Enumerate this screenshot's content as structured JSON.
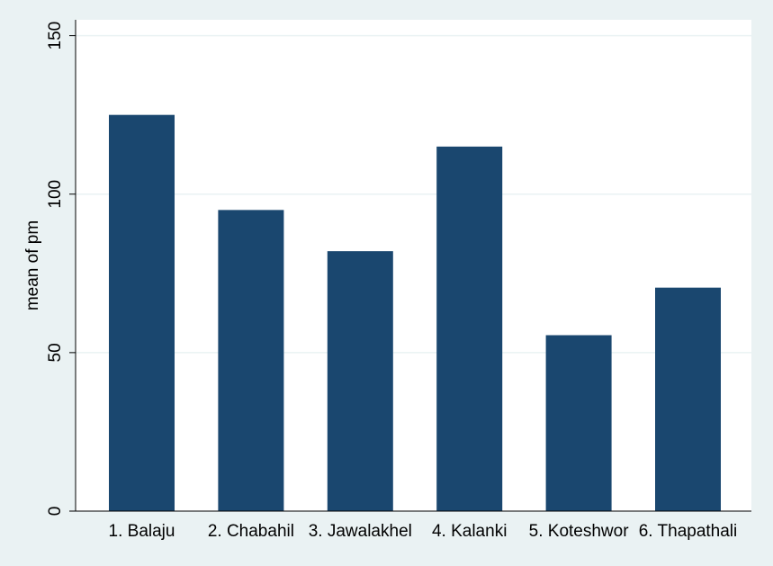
{
  "chart_data": {
    "type": "bar",
    "categories": [
      "1. Balaju",
      "2. Chabahil",
      "3. Jawalakhel",
      "4. Kalanki",
      "5. Koteshwor",
      "6. Thapathali"
    ],
    "values": [
      125,
      95,
      82,
      115,
      55.5,
      70.5
    ],
    "title": "",
    "xlabel": "",
    "ylabel": "mean of pm",
    "ylim": [
      0,
      155
    ],
    "yticks": [
      0,
      50,
      100,
      150
    ],
    "grid": true,
    "legend": "none"
  },
  "colors": {
    "bar": "#1a476f",
    "plot_background": "#ffffff",
    "outer_background": "#eaf2f3",
    "grid": "#eaf2f3",
    "axis": "#000000"
  }
}
